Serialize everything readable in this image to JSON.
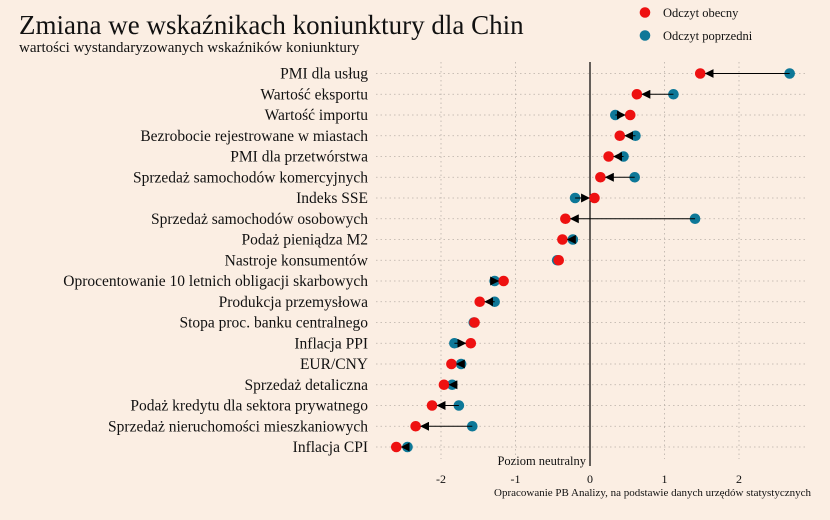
{
  "chart_data": {
    "type": "dot-arrow",
    "title": "Zmiana we wskaźnikach koniunktury dla Chin",
    "subtitle": "wartości wystandaryzowanych wskaźników koniunktury",
    "source": "Opracowanie PB Analizy, na podstawie danych urzędów statystycznych",
    "zero_label": "Poziom neutralny",
    "xlim": [
      -2.75,
      2.75
    ],
    "xticks": [
      -2,
      -1,
      0,
      1,
      2
    ],
    "xtick_labels": [
      "-2",
      "-1",
      "0",
      "1",
      "2"
    ],
    "grid": true,
    "legend_position": "top-right",
    "series": [
      {
        "name": "Odczyt obecny",
        "color": "#ee1111"
      },
      {
        "name": "Odczyt poprzedni",
        "color": "#0e7898"
      }
    ],
    "categories": [
      "PMI dla usług",
      "Wartość eksportu",
      "Wartość importu",
      "Bezrobocie rejestrowane w miastach",
      "PMI dla przetwórstwa",
      "Sprzedaż samochodów komercyjnych",
      "Indeks SSE",
      "Sprzedaż samochodów osobowych",
      "Podaż pieniądza M2",
      "Nastroje konsumentów",
      "Oprocentowanie 10 letnich obligacji skarbowych",
      "Produkcja przemysłowa",
      "Stopa proc. banku centralnego",
      "Inflacja PPI",
      "EUR/CNY",
      "Sprzedaż detaliczna",
      "Podaż kredytu dla sektora prywatnego",
      "Sprzedaż nieruchomości mieszkaniowych",
      "Inflacja CPI"
    ],
    "current": [
      1.48,
      0.63,
      0.54,
      0.4,
      0.25,
      0.14,
      0.06,
      -0.33,
      -0.37,
      -0.42,
      -1.16,
      -1.48,
      -1.55,
      -1.6,
      -1.86,
      -1.96,
      -2.12,
      -2.34,
      -2.6
    ],
    "previous": [
      2.68,
      1.12,
      0.34,
      0.61,
      0.45,
      0.6,
      -0.2,
      1.41,
      -0.23,
      -0.44,
      -1.28,
      -1.28,
      -1.56,
      -1.82,
      -1.73,
      -1.85,
      -1.76,
      -1.58,
      -2.45
    ]
  }
}
